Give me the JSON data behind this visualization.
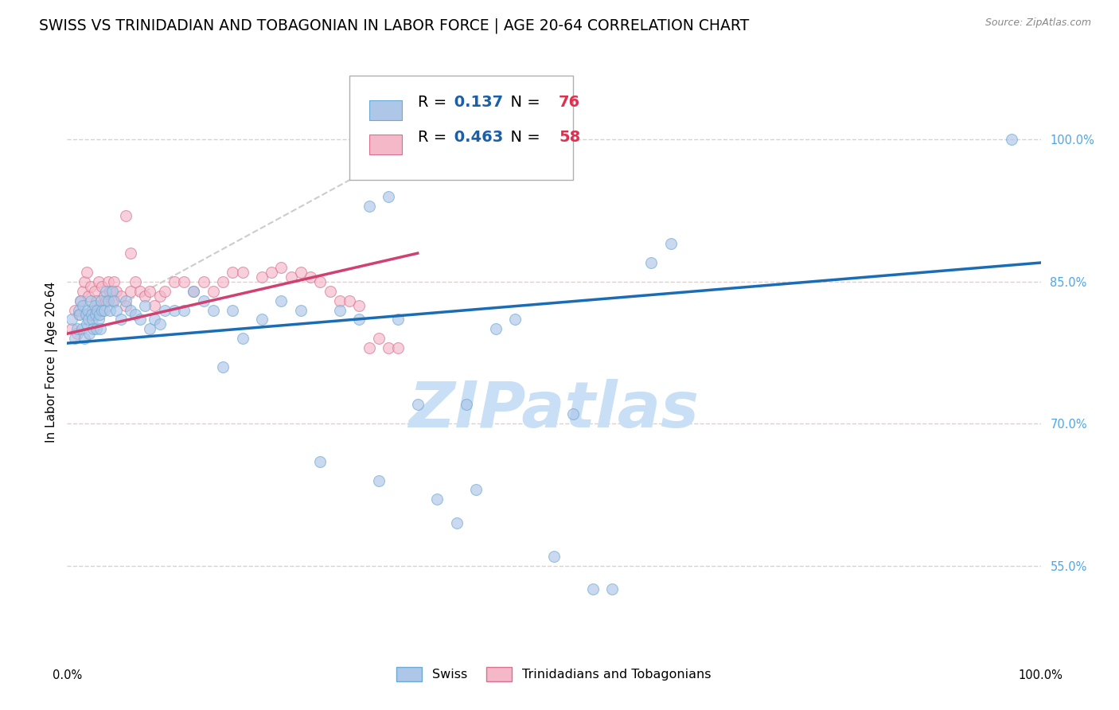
{
  "title": "SWISS VS TRINIDADIAN AND TOBAGONIAN IN LABOR FORCE | AGE 20-64 CORRELATION CHART",
  "source": "Source: ZipAtlas.com",
  "ylabel": "In Labor Force | Age 20-64",
  "xlim": [
    0.0,
    1.0
  ],
  "ylim": [
    0.45,
    1.08
  ],
  "yticks": [
    0.55,
    0.7,
    0.85,
    1.0
  ],
  "ytick_labels": [
    "55.0%",
    "70.0%",
    "85.0%",
    "100.0%"
  ],
  "xtick_labels": [
    "0.0%",
    "100.0%"
  ],
  "swiss_R": 0.137,
  "swiss_N": 76,
  "tnt_R": 0.463,
  "tnt_N": 58,
  "swiss_color": "#aec6e8",
  "swiss_edge_color": "#6aaad4",
  "tnt_color": "#f4b8c8",
  "tnt_edge_color": "#d87090",
  "swiss_line_color": "#1a6db5",
  "tnt_line_color": "#d04070",
  "diagonal_color": "#cccccc",
  "watermark_color": "#c8dff5",
  "legend_color": "#1a5fa8",
  "legend_n_color": "#e03050",
  "background_color": "#ffffff",
  "grid_color": "#ddd0d0",
  "marker_size": 100,
  "marker_alpha": 0.65,
  "title_fontsize": 13.5,
  "axis_label_fontsize": 11,
  "tick_fontsize": 10.5,
  "legend_fontsize": 14,
  "swiss_x": [
    0.005,
    0.008,
    0.01,
    0.012,
    0.013,
    0.014,
    0.015,
    0.016,
    0.018,
    0.019,
    0.02,
    0.021,
    0.022,
    0.023,
    0.024,
    0.025,
    0.026,
    0.027,
    0.028,
    0.029,
    0.03,
    0.031,
    0.032,
    0.033,
    0.034,
    0.035,
    0.036,
    0.038,
    0.04,
    0.042,
    0.044,
    0.046,
    0.048,
    0.05,
    0.055,
    0.06,
    0.065,
    0.07,
    0.075,
    0.08,
    0.085,
    0.09,
    0.095,
    0.1,
    0.11,
    0.12,
    0.13,
    0.14,
    0.15,
    0.16,
    0.17,
    0.18,
    0.2,
    0.22,
    0.24,
    0.26,
    0.28,
    0.3,
    0.32,
    0.34,
    0.36,
    0.4,
    0.42,
    0.44,
    0.46,
    0.5,
    0.52,
    0.54,
    0.56,
    0.6,
    0.62,
    0.97,
    0.31,
    0.33,
    0.38,
    0.41
  ],
  "swiss_y": [
    0.81,
    0.79,
    0.8,
    0.82,
    0.815,
    0.83,
    0.8,
    0.825,
    0.79,
    0.815,
    0.805,
    0.82,
    0.81,
    0.795,
    0.83,
    0.815,
    0.81,
    0.8,
    0.825,
    0.815,
    0.8,
    0.82,
    0.81,
    0.815,
    0.8,
    0.83,
    0.82,
    0.82,
    0.84,
    0.83,
    0.82,
    0.84,
    0.83,
    0.82,
    0.81,
    0.83,
    0.82,
    0.815,
    0.81,
    0.825,
    0.8,
    0.81,
    0.805,
    0.82,
    0.82,
    0.82,
    0.84,
    0.83,
    0.82,
    0.76,
    0.82,
    0.79,
    0.81,
    0.83,
    0.82,
    0.66,
    0.82,
    0.81,
    0.64,
    0.81,
    0.72,
    0.595,
    0.63,
    0.8,
    0.81,
    0.56,
    0.71,
    0.525,
    0.525,
    0.87,
    0.89,
    1.0,
    0.93,
    0.94,
    0.62,
    0.72
  ],
  "tnt_x": [
    0.005,
    0.008,
    0.01,
    0.012,
    0.014,
    0.016,
    0.018,
    0.02,
    0.022,
    0.024,
    0.026,
    0.028,
    0.03,
    0.032,
    0.034,
    0.036,
    0.038,
    0.04,
    0.042,
    0.044,
    0.046,
    0.048,
    0.05,
    0.055,
    0.06,
    0.065,
    0.07,
    0.075,
    0.08,
    0.085,
    0.09,
    0.095,
    0.1,
    0.11,
    0.12,
    0.13,
    0.14,
    0.15,
    0.16,
    0.17,
    0.18,
    0.2,
    0.21,
    0.22,
    0.23,
    0.24,
    0.25,
    0.26,
    0.27,
    0.28,
    0.29,
    0.3,
    0.31,
    0.32,
    0.33,
    0.34,
    0.06,
    0.065
  ],
  "tnt_y": [
    0.8,
    0.82,
    0.795,
    0.815,
    0.83,
    0.84,
    0.85,
    0.86,
    0.835,
    0.845,
    0.82,
    0.84,
    0.83,
    0.85,
    0.825,
    0.845,
    0.835,
    0.83,
    0.85,
    0.84,
    0.83,
    0.85,
    0.84,
    0.835,
    0.825,
    0.84,
    0.85,
    0.84,
    0.835,
    0.84,
    0.825,
    0.835,
    0.84,
    0.85,
    0.85,
    0.84,
    0.85,
    0.84,
    0.85,
    0.86,
    0.86,
    0.855,
    0.86,
    0.865,
    0.855,
    0.86,
    0.855,
    0.85,
    0.84,
    0.83,
    0.83,
    0.825,
    0.78,
    0.79,
    0.78,
    0.78,
    0.92,
    0.88
  ]
}
